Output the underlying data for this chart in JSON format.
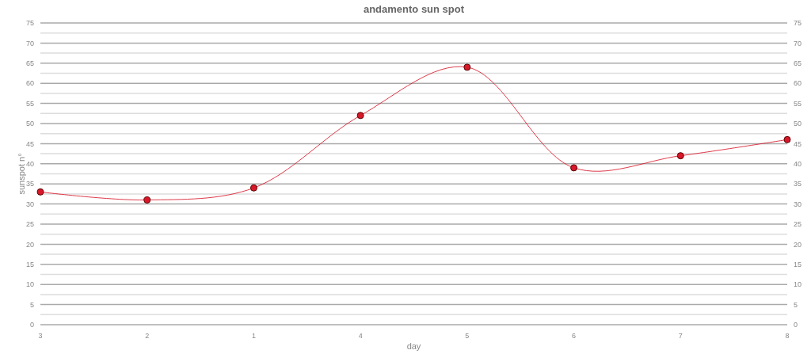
{
  "chart_data": {
    "type": "line",
    "title": "andamento sun spot",
    "xlabel": "day",
    "ylabel": "sunspot n°",
    "categories": [
      "3",
      "2",
      "1",
      "4",
      "5",
      "6",
      "7",
      "8"
    ],
    "series": [
      {
        "color": "#d8182a",
        "values": [
          33,
          31,
          34,
          52,
          64,
          39,
          42,
          46
        ]
      }
    ],
    "ylim": [
      0,
      75
    ],
    "yticks": [
      0,
      {
        "value": 2.5,
        "label": null
      },
      5,
      {
        "value": 7.5,
        "label": null
      },
      10,
      {
        "value": 12.5,
        "label": null
      },
      15,
      {
        "value": 17.5,
        "label": null
      },
      20,
      {
        "value": 22.5,
        "label": null
      },
      25,
      {
        "value": 27.5,
        "label": null
      },
      30,
      {
        "value": 32.5,
        "label": null
      },
      35,
      {
        "value": 37.5,
        "label": null
      },
      40,
      {
        "value": 42.5,
        "label": null
      },
      45,
      {
        "value": 47.5,
        "label": null
      },
      50,
      {
        "value": 52.5,
        "label": null
      },
      55,
      {
        "value": 57.5,
        "label": null
      },
      60,
      {
        "value": 62.5,
        "label": null
      },
      65,
      {
        "value": 67.5,
        "label": null
      },
      70,
      {
        "value": 72.5,
        "label": null
      },
      75
    ],
    "y2lim": [
      0,
      75
    ],
    "y2ticks": [
      0,
      5,
      10,
      15,
      20,
      25,
      30,
      35,
      40,
      45,
      50,
      55,
      60,
      65,
      70,
      75
    ],
    "grid": "y",
    "marker": "circle",
    "line_style": "solid"
  }
}
